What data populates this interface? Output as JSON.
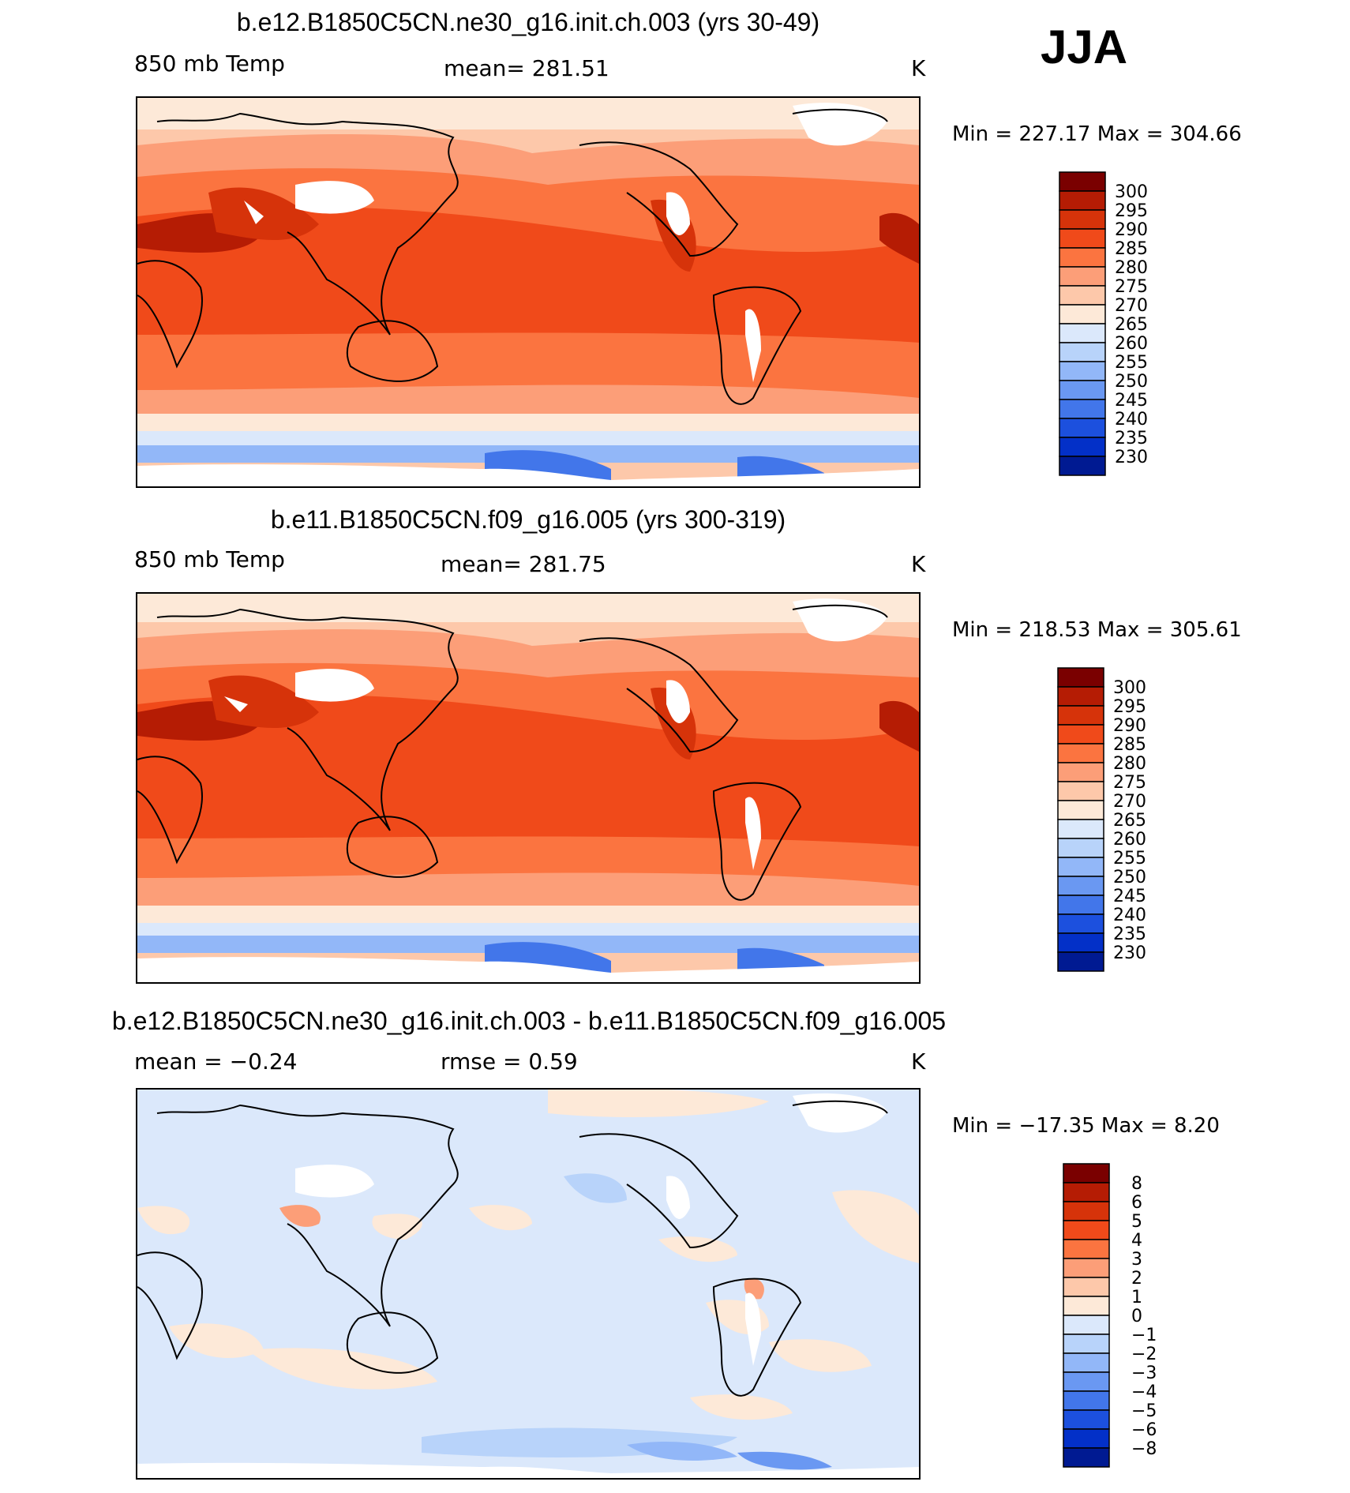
{
  "season": "JJA",
  "panels": [
    {
      "title": "b.e12.B1850C5CN.ne30_g16.init.ch.003 (yrs 30-49)",
      "variable": "850 mb Temp",
      "stat": "mean=  281.51",
      "units": "K",
      "minmax": "Min  =  227.17  Max  =  304.66",
      "colorbar": [
        "300",
        "295",
        "290",
        "285",
        "280",
        "275",
        "270",
        "265",
        "260",
        "255",
        "250",
        "245",
        "240",
        "235",
        "230"
      ],
      "colors": [
        "#7a0000",
        "#b51c04",
        "#d6330a",
        "#f04a1a",
        "#fb7440",
        "#fc9e78",
        "#fdc8aa",
        "#fde9d8",
        "#dbe8fb",
        "#b8d3fa",
        "#92b7f8",
        "#6a98f2",
        "#4276ea",
        "#1c50de",
        "#0330c8",
        "#001a92"
      ]
    },
    {
      "title": "b.e11.B1850C5CN.f09_g16.005 (yrs 300-319)",
      "variable": "850 mb Temp",
      "stat": "mean=  281.75",
      "units": "K",
      "minmax": "Min  =  218.53  Max  =  305.61",
      "colorbar": [
        "300",
        "295",
        "290",
        "285",
        "280",
        "275",
        "270",
        "265",
        "260",
        "255",
        "250",
        "245",
        "240",
        "235",
        "230"
      ],
      "colors": [
        "#7a0000",
        "#b51c04",
        "#d6330a",
        "#f04a1a",
        "#fb7440",
        "#fc9e78",
        "#fdc8aa",
        "#fde9d8",
        "#dbe8fb",
        "#b8d3fa",
        "#92b7f8",
        "#6a98f2",
        "#4276ea",
        "#1c50de",
        "#0330c8",
        "#001a92"
      ]
    },
    {
      "title": "b.e12.B1850C5CN.ne30_g16.init.ch.003 - b.e11.B1850C5CN.f09_g16.005",
      "stat": "mean  =    −0.24",
      "stat2": "rmse  =     0.59",
      "units": "K",
      "minmax": "Min  =  −17.35  Max  =     8.20",
      "colorbar": [
        "8",
        "6",
        "5",
        "4",
        "3",
        "2",
        "1",
        "0",
        "−1",
        "−2",
        "−3",
        "−4",
        "−5",
        "−6",
        "−8"
      ],
      "colors": [
        "#7a0000",
        "#b51c04",
        "#d6330a",
        "#f04a1a",
        "#fb7440",
        "#fc9e78",
        "#fdc8aa",
        "#fde9d8",
        "#dbe8fb",
        "#b8d3fa",
        "#92b7f8",
        "#6a98f2",
        "#4276ea",
        "#1c50de",
        "#0330c8",
        "#001a92"
      ]
    }
  ]
}
